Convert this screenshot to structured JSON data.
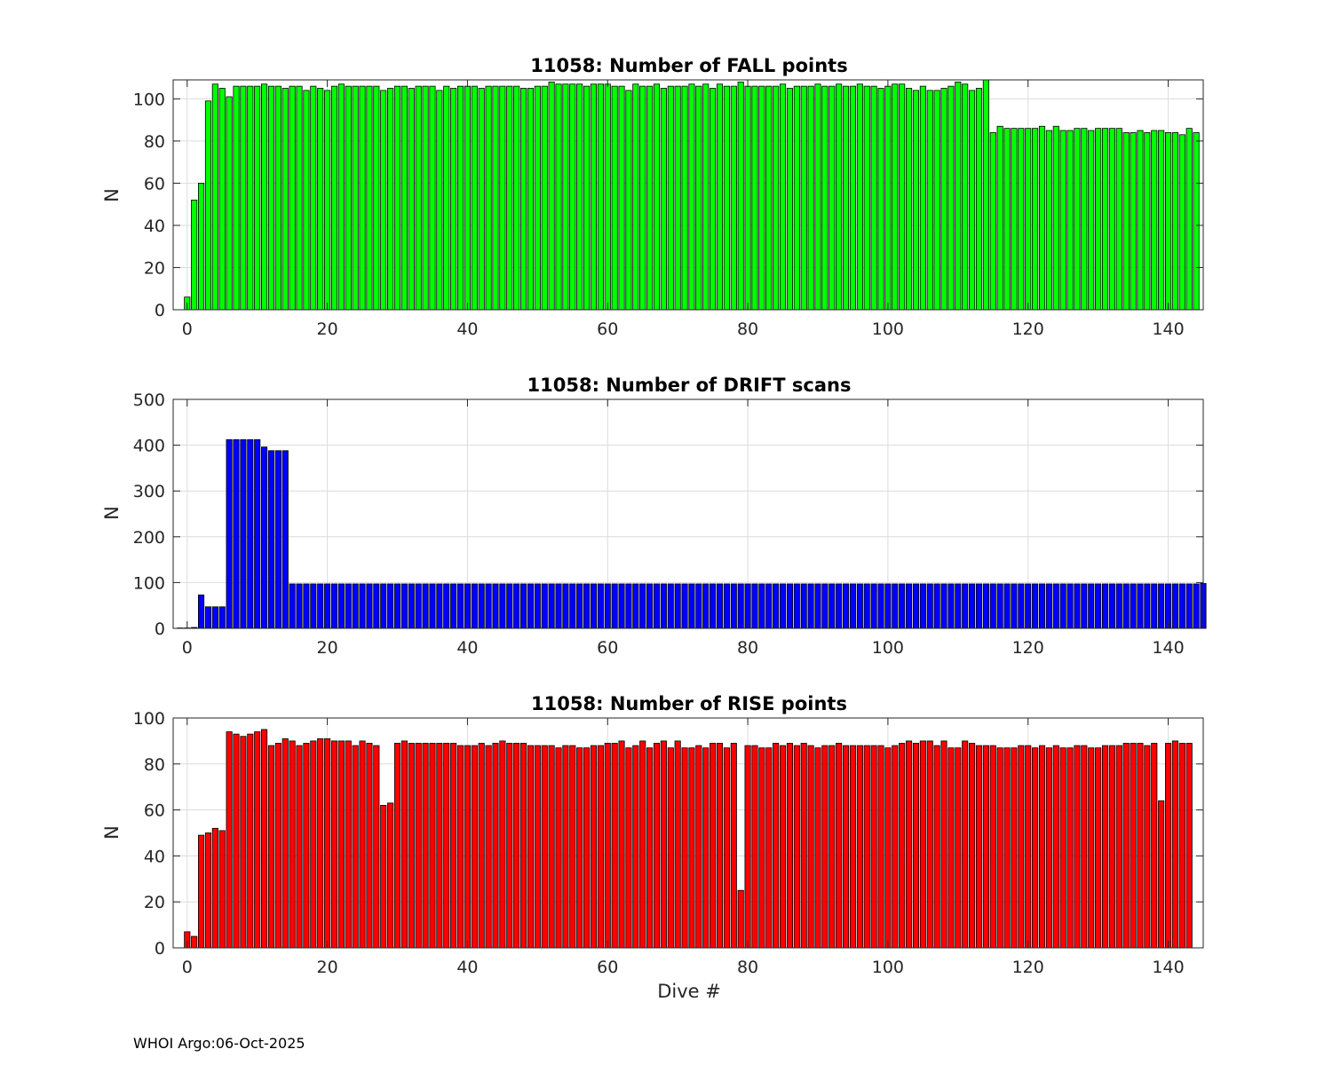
{
  "footer": {
    "note": "WHOI Argo:06-Oct-2025"
  },
  "chart_data": [
    {
      "type": "bar",
      "title": "11058: Number of FALL points",
      "xlabel": "",
      "ylabel": "N",
      "xlim": [
        -2,
        145
      ],
      "ylim": [
        0,
        109
      ],
      "xticks": [
        0,
        20,
        40,
        60,
        80,
        100,
        120,
        140
      ],
      "yticks": [
        0,
        20,
        40,
        60,
        80,
        100
      ],
      "color": "#00ff00",
      "x_start": 0,
      "values": [
        6,
        52,
        60,
        99,
        107,
        105,
        101,
        106,
        106,
        106,
        106,
        107,
        106,
        106,
        105,
        106,
        106,
        104,
        106,
        105,
        104,
        106,
        107,
        106,
        106,
        106,
        106,
        106,
        104,
        105,
        106,
        106,
        105,
        106,
        106,
        106,
        104,
        106,
        105,
        106,
        106,
        106,
        105,
        106,
        106,
        106,
        106,
        106,
        105,
        105,
        106,
        106,
        108,
        107,
        107,
        107,
        107,
        106,
        107,
        107,
        107,
        106,
        106,
        104,
        107,
        106,
        106,
        107,
        105,
        106,
        106,
        106,
        107,
        106,
        107,
        105,
        107,
        106,
        106,
        108,
        106,
        106,
        106,
        106,
        106,
        107,
        105,
        106,
        106,
        106,
        107,
        106,
        106,
        107,
        106,
        106,
        107,
        106,
        106,
        105,
        106,
        107,
        107,
        105,
        104,
        106,
        104,
        104,
        105,
        106,
        108,
        107,
        104,
        105,
        109,
        84,
        87,
        86,
        86,
        86,
        86,
        86,
        87,
        85,
        87,
        85,
        85,
        86,
        86,
        85,
        86,
        86,
        86,
        86,
        84,
        84,
        85,
        84,
        85,
        85,
        84,
        84,
        83,
        86,
        84
      ]
    },
    {
      "type": "bar",
      "title": "11058: Number of DRIFT scans",
      "xlabel": "",
      "ylabel": "N",
      "xlim": [
        -2,
        145
      ],
      "ylim": [
        0,
        500
      ],
      "xticks": [
        0,
        20,
        40,
        60,
        80,
        100,
        120,
        140
      ],
      "yticks": [
        0,
        100,
        200,
        300,
        400,
        500
      ],
      "color": "#0000ff",
      "x_start": -1,
      "values": [
        0,
        0,
        2,
        73,
        47,
        47,
        47,
        412,
        412,
        412,
        412,
        412,
        396,
        388,
        388,
        388,
        97,
        97,
        97,
        97,
        97,
        97,
        97,
        97,
        97,
        97,
        97,
        97,
        97,
        97,
        97,
        97,
        97,
        97,
        97,
        97,
        97,
        97,
        97,
        97,
        97,
        97,
        97,
        97,
        97,
        97,
        97,
        97,
        97,
        97,
        97,
        97,
        97,
        97,
        97,
        97,
        97,
        97,
        97,
        97,
        97,
        97,
        97,
        97,
        97,
        97,
        97,
        97,
        97,
        97,
        97,
        97,
        97,
        97,
        97,
        97,
        97,
        97,
        97,
        97,
        97,
        97,
        97,
        97,
        97,
        97,
        97,
        97,
        97,
        97,
        97,
        97,
        97,
        97,
        97,
        97,
        97,
        97,
        97,
        97,
        97,
        97,
        97,
        97,
        97,
        97,
        97,
        97,
        97,
        97,
        97,
        97,
        97,
        97,
        97,
        97,
        97,
        97,
        97,
        97,
        97,
        97,
        97,
        97,
        97,
        97,
        97,
        97,
        97,
        97,
        97,
        97,
        97,
        97,
        97,
        97,
        97,
        97,
        97,
        97,
        97,
        97,
        97,
        97,
        97,
        97,
        98
      ]
    },
    {
      "type": "bar",
      "title": "11058: Number of RISE points",
      "xlabel": "Dive #",
      "ylabel": "N",
      "xlim": [
        -2,
        145
      ],
      "ylim": [
        0,
        100
      ],
      "xticks": [
        0,
        20,
        40,
        60,
        80,
        100,
        120,
        140
      ],
      "yticks": [
        0,
        20,
        40,
        60,
        80,
        100
      ],
      "color": "#ff0000",
      "x_start": 0,
      "values": [
        7,
        5,
        49,
        50,
        52,
        51,
        94,
        93,
        92,
        93,
        94,
        95,
        88,
        89,
        91,
        90,
        88,
        89,
        90,
        91,
        91,
        90,
        90,
        90,
        88,
        90,
        89,
        88,
        62,
        63,
        89,
        90,
        89,
        89,
        89,
        89,
        89,
        89,
        89,
        88,
        88,
        88,
        89,
        88,
        89,
        90,
        89,
        89,
        89,
        88,
        88,
        88,
        88,
        87,
        88,
        88,
        87,
        87,
        88,
        88,
        89,
        89,
        90,
        87,
        88,
        90,
        87,
        89,
        90,
        87,
        90,
        87,
        87,
        88,
        87,
        89,
        89,
        87,
        89,
        25,
        88,
        88,
        87,
        87,
        89,
        88,
        89,
        88,
        89,
        88,
        87,
        88,
        88,
        89,
        88,
        88,
        88,
        88,
        88,
        88,
        87,
        88,
        89,
        90,
        89,
        90,
        90,
        88,
        90,
        87,
        87,
        90,
        89,
        88,
        88,
        88,
        87,
        87,
        87,
        88,
        88,
        87,
        88,
        87,
        88,
        87,
        87,
        88,
        88,
        87,
        87,
        88,
        88,
        88,
        89,
        89,
        89,
        88,
        89,
        64,
        89,
        90,
        89,
        89
      ]
    }
  ]
}
